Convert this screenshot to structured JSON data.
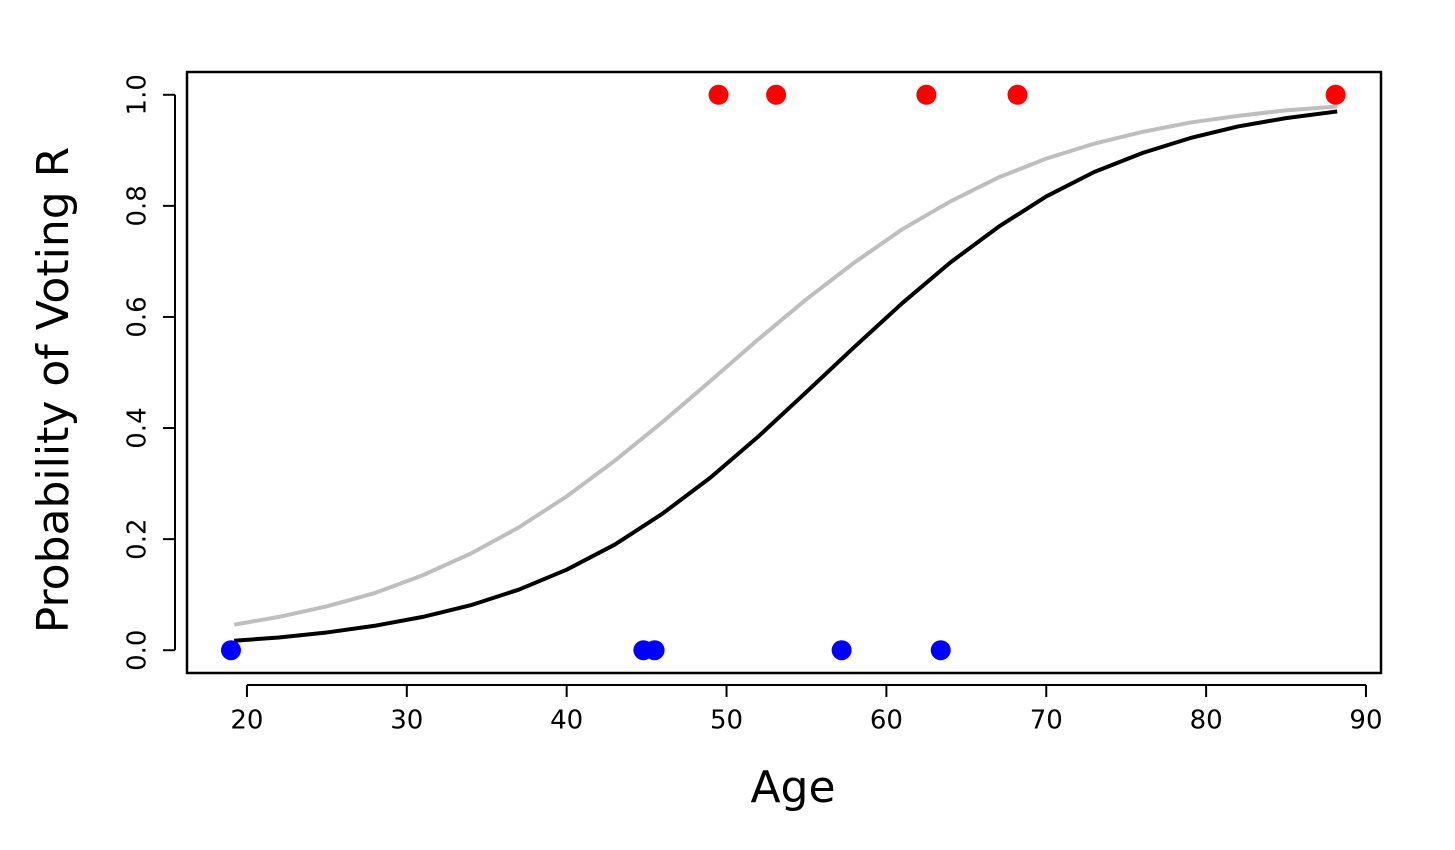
{
  "chart_data": {
    "type": "scatter",
    "x_label": "Age",
    "y_label": "Probability of Voting R",
    "xlim": [
      16.25,
      90.94
    ],
    "ylim": [
      -0.041,
      1.041
    ],
    "xticks": [
      20,
      30,
      40,
      50,
      60,
      70,
      80,
      90
    ],
    "yticks": [
      {
        "value": 0,
        "label": "0.0"
      },
      0.2,
      0.4,
      0.6,
      0.8,
      {
        "value": 1,
        "label": "1.0"
      }
    ],
    "series": [
      {
        "mode": "markers",
        "color": "#ff0000",
        "x": [
          49.5,
          53.1,
          62.5,
          68.2,
          88.1
        ],
        "values": [
          1,
          1,
          1,
          1,
          1
        ]
      },
      {
        "mode": "markers",
        "color": "#0000ff",
        "x": [
          19.0,
          44.8,
          45.5,
          57.2,
          63.4
        ],
        "values": [
          0,
          0,
          0,
          0,
          0
        ]
      },
      {
        "mode": "line",
        "color": "#bebebe",
        "x": [
          19.2,
          22,
          25,
          28,
          31,
          34,
          37,
          40,
          43,
          46,
          49,
          52,
          55,
          58,
          61,
          64,
          67,
          70,
          73,
          76,
          79,
          82,
          85,
          88.2
        ],
        "values": [
          0.046,
          0.06,
          0.079,
          0.103,
          0.135,
          0.174,
          0.221,
          0.277,
          0.341,
          0.411,
          0.485,
          0.56,
          0.632,
          0.698,
          0.758,
          0.808,
          0.851,
          0.885,
          0.912,
          0.933,
          0.95,
          0.962,
          0.972,
          0.979
        ]
      },
      {
        "mode": "line",
        "color": "#000000",
        "x": [
          19.2,
          22,
          25,
          28,
          31,
          34,
          37,
          40,
          43,
          46,
          49,
          52,
          55,
          58,
          61,
          64,
          67,
          70,
          73,
          76,
          79,
          82,
          85,
          88.2
        ],
        "values": [
          0.017,
          0.023,
          0.032,
          0.044,
          0.06,
          0.081,
          0.109,
          0.145,
          0.19,
          0.246,
          0.311,
          0.385,
          0.465,
          0.546,
          0.625,
          0.698,
          0.762,
          0.817,
          0.861,
          0.895,
          0.922,
          0.943,
          0.958,
          0.97
        ]
      }
    ]
  }
}
